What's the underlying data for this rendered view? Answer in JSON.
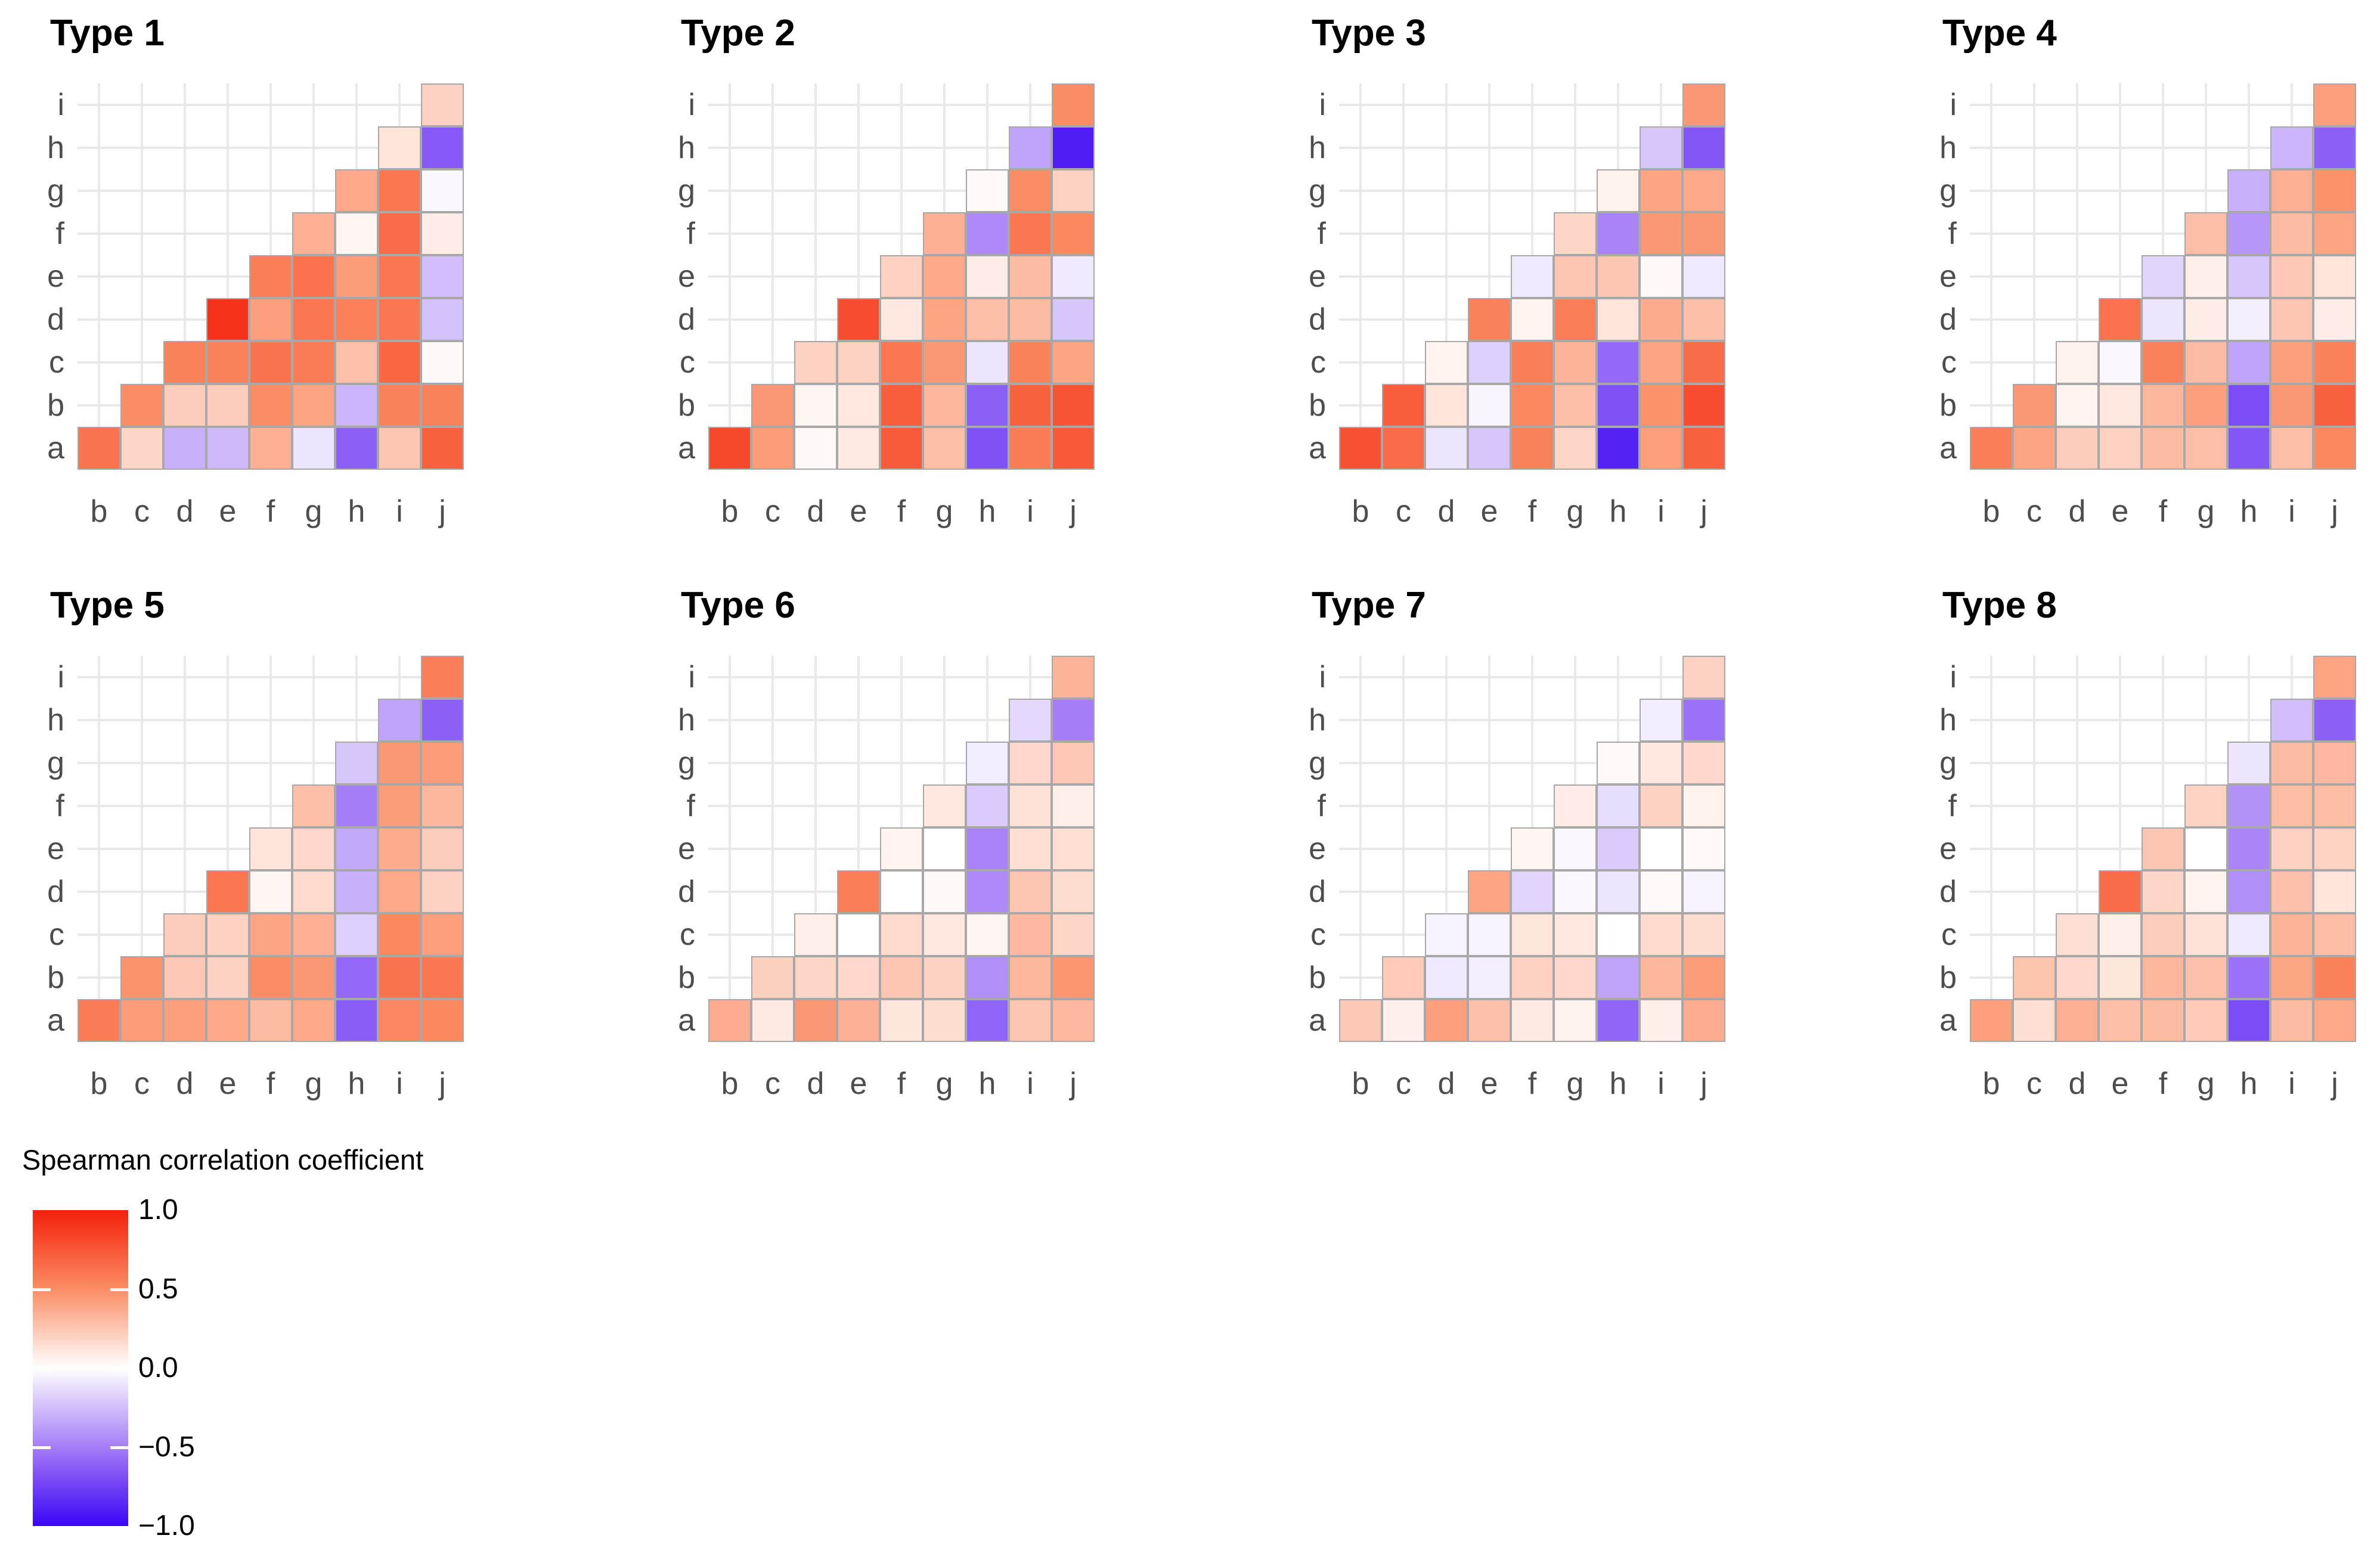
{
  "chart_data": {
    "type": "heatmap",
    "layout": {
      "grid": "2 rows x 4 columns of facets",
      "triangle": "lower",
      "panel_grid": true,
      "legend_position": "bottom-left",
      "grid_color": "#E9E9E9",
      "tile_border_color": "#A8A8A8",
      "axis_text_color": "#4d4d4d"
    },
    "x_categories": [
      "b",
      "c",
      "d",
      "e",
      "f",
      "g",
      "h",
      "i",
      "j"
    ],
    "y_categories": [
      "a",
      "b",
      "c",
      "d",
      "e",
      "f",
      "g",
      "h",
      "i"
    ],
    "colorbar": {
      "label": "Spearman correlation coefficient",
      "min": -1.0,
      "max": 1.0,
      "ticks": [
        1.0,
        0.5,
        0.0,
        -0.5,
        -1.0
      ],
      "stops": {
        "-1.0": "#3C05F5",
        "-0.5": "#A47DF7",
        "0.0": "#FFFFFF",
        "0.5": "#FB8D64",
        "1.0": "#F4200B"
      }
    },
    "facets": [
      {
        "title": "Type 1",
        "values": {
          "a": {
            "b": 0.62,
            "c": 0.18,
            "d": -0.3,
            "e": -0.27,
            "f": 0.35,
            "g": -0.1,
            "h": -0.62,
            "i": 0.25,
            "j": 0.7
          },
          "b": {
            "c": 0.5,
            "d": 0.22,
            "e": 0.22,
            "f": 0.5,
            "g": 0.4,
            "h": -0.28,
            "i": 0.55,
            "j": 0.55
          },
          "c": {
            "d": 0.55,
            "e": 0.55,
            "f": 0.62,
            "g": 0.58,
            "h": 0.27,
            "i": 0.68,
            "j": 0.03
          },
          "d": {
            "e": 0.92,
            "f": 0.42,
            "g": 0.6,
            "h": 0.56,
            "i": 0.6,
            "j": -0.24
          },
          "e": {
            "f": 0.57,
            "g": 0.63,
            "h": 0.43,
            "i": 0.6,
            "j": -0.25
          },
          "f": {
            "g": 0.35,
            "h": 0.04,
            "i": 0.66,
            "j": 0.08
          },
          "g": {
            "h": 0.38,
            "i": 0.6,
            "j": -0.03
          },
          "h": {
            "i": 0.12,
            "j": -0.65
          },
          "i": {
            "j": 0.2
          }
        }
      },
      {
        "title": "Type 2",
        "values": {
          "a": {
            "b": 0.82,
            "c": 0.44,
            "d": 0.03,
            "e": 0.09,
            "f": 0.73,
            "g": 0.28,
            "h": -0.68,
            "i": 0.58,
            "j": 0.74
          },
          "b": {
            "c": 0.45,
            "d": 0.04,
            "e": 0.1,
            "f": 0.72,
            "g": 0.32,
            "h": -0.62,
            "i": 0.7,
            "j": 0.76
          },
          "c": {
            "d": 0.2,
            "e": 0.2,
            "f": 0.6,
            "g": 0.45,
            "h": -0.1,
            "i": 0.55,
            "j": 0.4
          },
          "d": {
            "e": 0.8,
            "f": 0.1,
            "g": 0.4,
            "h": 0.28,
            "i": 0.3,
            "j": -0.22
          },
          "e": {
            "f": 0.2,
            "g": 0.38,
            "h": 0.08,
            "i": 0.3,
            "j": -0.08
          },
          "f": {
            "g": 0.35,
            "h": -0.45,
            "i": 0.6,
            "j": 0.52
          },
          "g": {
            "h": 0.02,
            "i": 0.5,
            "j": 0.2
          },
          "h": {
            "i": -0.35,
            "j": -0.9
          },
          "i": {
            "j": 0.5
          }
        }
      },
      {
        "title": "Type 3",
        "values": {
          "a": {
            "b": 0.78,
            "c": 0.66,
            "d": -0.1,
            "e": -0.22,
            "f": 0.55,
            "g": 0.18,
            "h": -0.88,
            "i": 0.42,
            "j": 0.7
          },
          "b": {
            "c": 0.72,
            "d": 0.12,
            "e": -0.04,
            "f": 0.52,
            "g": 0.28,
            "h": -0.68,
            "i": 0.48,
            "j": 0.8
          },
          "c": {
            "d": 0.05,
            "e": -0.18,
            "f": 0.57,
            "g": 0.33,
            "h": -0.58,
            "i": 0.4,
            "j": 0.65
          },
          "d": {
            "e": 0.55,
            "f": 0.05,
            "g": 0.57,
            "h": 0.12,
            "i": 0.37,
            "j": 0.28
          },
          "e": {
            "f": -0.08,
            "g": 0.25,
            "h": 0.25,
            "i": 0.03,
            "j": -0.08
          },
          "f": {
            "g": 0.18,
            "h": -0.48,
            "i": 0.45,
            "j": 0.45
          },
          "g": {
            "h": 0.06,
            "i": 0.4,
            "j": 0.38
          },
          "h": {
            "i": -0.22,
            "j": -0.66
          },
          "i": {
            "j": 0.45
          }
        }
      },
      {
        "title": "Type 4",
        "values": {
          "a": {
            "b": 0.57,
            "c": 0.4,
            "d": 0.22,
            "e": 0.2,
            "f": 0.3,
            "g": 0.28,
            "h": -0.66,
            "i": 0.28,
            "j": 0.52
          },
          "b": {
            "c": 0.45,
            "d": 0.05,
            "e": 0.1,
            "f": 0.32,
            "g": 0.42,
            "h": -0.7,
            "i": 0.45,
            "j": 0.7
          },
          "c": {
            "d": 0.06,
            "e": -0.03,
            "f": 0.55,
            "g": 0.3,
            "h": -0.35,
            "i": 0.42,
            "j": 0.55
          },
          "d": {
            "e": 0.63,
            "f": -0.1,
            "g": 0.08,
            "h": -0.06,
            "i": 0.25,
            "j": 0.08
          },
          "e": {
            "f": -0.16,
            "g": 0.07,
            "h": -0.22,
            "i": 0.24,
            "j": 0.12
          },
          "f": {
            "g": 0.28,
            "h": -0.4,
            "i": 0.3,
            "j": 0.4
          },
          "g": {
            "h": -0.3,
            "i": 0.35,
            "j": 0.48
          },
          "h": {
            "i": -0.28,
            "j": -0.62
          },
          "i": {
            "j": 0.42
          }
        }
      },
      {
        "title": "Type 5",
        "values": {
          "a": {
            "b": 0.58,
            "c": 0.44,
            "d": 0.42,
            "e": 0.38,
            "f": 0.3,
            "g": 0.38,
            "h": -0.63,
            "i": 0.53,
            "j": 0.52
          },
          "b": {
            "c": 0.47,
            "d": 0.24,
            "e": 0.2,
            "f": 0.5,
            "g": 0.45,
            "h": -0.58,
            "i": 0.62,
            "j": 0.6
          },
          "c": {
            "d": 0.22,
            "e": 0.2,
            "f": 0.4,
            "g": 0.35,
            "h": -0.18,
            "i": 0.52,
            "j": 0.42
          },
          "d": {
            "e": 0.6,
            "f": 0.04,
            "g": 0.16,
            "h": -0.3,
            "i": 0.38,
            "j": 0.2
          },
          "e": {
            "f": 0.12,
            "g": 0.17,
            "h": -0.33,
            "i": 0.37,
            "j": 0.22
          },
          "f": {
            "g": 0.28,
            "h": -0.5,
            "i": 0.43,
            "j": 0.32
          },
          "g": {
            "h": -0.22,
            "i": 0.45,
            "j": 0.44
          },
          "h": {
            "i": -0.35,
            "j": -0.62
          },
          "i": {
            "j": 0.57
          }
        }
      },
      {
        "title": "Type 6",
        "values": {
          "a": {
            "b": 0.36,
            "c": 0.09,
            "d": 0.45,
            "e": 0.34,
            "f": 0.11,
            "g": 0.15,
            "h": -0.6,
            "i": 0.25,
            "j": 0.31
          },
          "b": {
            "c": 0.21,
            "d": 0.18,
            "e": 0.17,
            "f": 0.25,
            "g": 0.2,
            "h": -0.43,
            "i": 0.32,
            "j": 0.46
          },
          "c": {
            "d": 0.07,
            "e": 0.0,
            "f": 0.16,
            "g": 0.1,
            "h": 0.04,
            "i": 0.31,
            "j": 0.18
          },
          "d": {
            "e": 0.57,
            "f": 0.0,
            "g": 0.03,
            "h": -0.45,
            "i": 0.25,
            "j": 0.15
          },
          "e": {
            "f": 0.05,
            "g": 0.0,
            "h": -0.48,
            "i": 0.14,
            "j": 0.14
          },
          "f": {
            "g": 0.1,
            "h": -0.2,
            "i": 0.13,
            "j": 0.07
          },
          "g": {
            "h": -0.07,
            "i": 0.17,
            "j": 0.24
          },
          "h": {
            "i": -0.15,
            "j": -0.5
          },
          "i": {
            "j": 0.33
          }
        }
      },
      {
        "title": "Type 7",
        "values": {
          "a": {
            "b": 0.24,
            "c": 0.07,
            "d": 0.42,
            "e": 0.27,
            "f": 0.09,
            "g": 0.06,
            "h": -0.6,
            "i": 0.07,
            "j": 0.36
          },
          "b": {
            "c": 0.23,
            "d": -0.08,
            "e": -0.06,
            "f": 0.2,
            "g": 0.17,
            "h": -0.35,
            "i": 0.32,
            "j": 0.44
          },
          "c": {
            "d": -0.05,
            "e": -0.05,
            "f": 0.11,
            "g": 0.1,
            "h": 0.0,
            "i": 0.16,
            "j": 0.15
          },
          "d": {
            "e": 0.4,
            "f": -0.17,
            "g": -0.03,
            "h": -0.1,
            "i": 0.02,
            "j": -0.05
          },
          "e": {
            "f": 0.04,
            "g": -0.03,
            "h": -0.2,
            "i": 0.0,
            "j": 0.02
          },
          "f": {
            "g": 0.08,
            "h": -0.13,
            "i": 0.2,
            "j": 0.06
          },
          "g": {
            "h": 0.02,
            "i": 0.1,
            "j": 0.17
          },
          "h": {
            "i": -0.07,
            "j": -0.55
          },
          "i": {
            "j": 0.2
          }
        }
      },
      {
        "title": "Type 8",
        "values": {
          "a": {
            "b": 0.42,
            "c": 0.14,
            "d": 0.35,
            "e": 0.28,
            "f": 0.3,
            "g": 0.23,
            "h": -0.7,
            "i": 0.3,
            "j": 0.38
          },
          "b": {
            "c": 0.26,
            "d": 0.17,
            "e": 0.11,
            "f": 0.32,
            "g": 0.27,
            "h": -0.55,
            "i": 0.39,
            "j": 0.55
          },
          "c": {
            "d": 0.14,
            "e": 0.07,
            "f": 0.22,
            "g": 0.13,
            "h": -0.08,
            "i": 0.33,
            "j": 0.29
          },
          "d": {
            "e": 0.65,
            "f": 0.18,
            "g": 0.05,
            "h": -0.43,
            "i": 0.27,
            "j": 0.12
          },
          "e": {
            "f": 0.25,
            "g": 0.0,
            "h": -0.47,
            "i": 0.2,
            "j": 0.19
          },
          "f": {
            "g": 0.19,
            "h": -0.42,
            "i": 0.29,
            "j": 0.29
          },
          "g": {
            "h": -0.1,
            "i": 0.3,
            "j": 0.31
          },
          "h": {
            "i": -0.25,
            "j": -0.62
          },
          "i": {
            "j": 0.4
          }
        }
      }
    ]
  },
  "legend": {
    "title": "Spearman correlation coefficient",
    "tick_labels": [
      "1.0",
      "0.5",
      "0.0",
      "−0.5",
      "−1.0"
    ]
  }
}
